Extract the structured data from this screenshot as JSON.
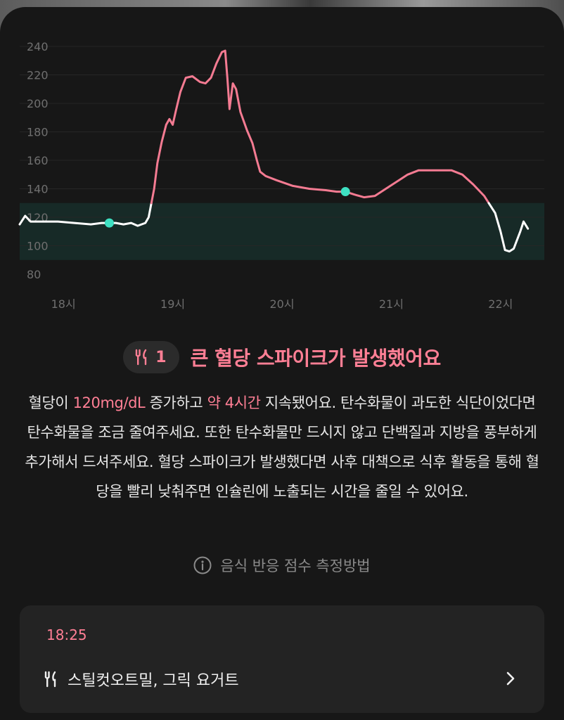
{
  "chart_data": {
    "type": "line",
    "title": "",
    "xlabel": "",
    "ylabel": "",
    "ylim": [
      80,
      240
    ],
    "yticks": [
      240,
      220,
      200,
      180,
      160,
      140,
      120,
      100,
      80
    ],
    "xticks": [
      {
        "label": "18시",
        "hour": 18.0
      },
      {
        "label": "19시",
        "hour": 19.0
      },
      {
        "label": "20시",
        "hour": 20.0
      },
      {
        "label": "21시",
        "hour": 21.0
      },
      {
        "label": "22시",
        "hour": 22.0
      }
    ],
    "xlim": [
      17.6,
      22.4
    ],
    "target_range": [
      90,
      130
    ],
    "grid": true,
    "colors": {
      "in_range_line": "#ffffff",
      "spike_line": "#f47b92",
      "target_band": "#172a27",
      "marker": "#3ee0c2"
    },
    "series": [
      {
        "points": [
          [
            17.6,
            115
          ],
          [
            17.65,
            121
          ],
          [
            17.7,
            117
          ],
          [
            17.8,
            117
          ],
          [
            17.95,
            117
          ],
          [
            18.1,
            116
          ],
          [
            18.25,
            115
          ],
          [
            18.35,
            116
          ],
          [
            18.42,
            116
          ],
          [
            18.48,
            116
          ],
          [
            18.55,
            115
          ],
          [
            18.62,
            116
          ],
          [
            18.68,
            114
          ],
          [
            18.75,
            116
          ],
          [
            18.78,
            120
          ],
          [
            18.8,
            128
          ],
          [
            18.83,
            140
          ],
          [
            18.86,
            158
          ],
          [
            18.9,
            173
          ],
          [
            18.94,
            185
          ],
          [
            18.97,
            189
          ],
          [
            19.0,
            185
          ],
          [
            19.03,
            195
          ],
          [
            19.07,
            208
          ],
          [
            19.12,
            218
          ],
          [
            19.18,
            219
          ],
          [
            19.25,
            215
          ],
          [
            19.3,
            214
          ],
          [
            19.35,
            218
          ],
          [
            19.4,
            228
          ],
          [
            19.45,
            236
          ],
          [
            19.48,
            237
          ],
          [
            19.5,
            218
          ],
          [
            19.52,
            196
          ],
          [
            19.55,
            214
          ],
          [
            19.58,
            210
          ],
          [
            19.62,
            194
          ],
          [
            19.68,
            181
          ],
          [
            19.73,
            172
          ],
          [
            19.77,
            160
          ],
          [
            19.8,
            152
          ],
          [
            19.85,
            149
          ],
          [
            19.95,
            146
          ],
          [
            20.1,
            142
          ],
          [
            20.25,
            140
          ],
          [
            20.4,
            139
          ],
          [
            20.5,
            138
          ],
          [
            20.58,
            138
          ],
          [
            20.66,
            136
          ],
          [
            20.75,
            134
          ],
          [
            20.85,
            135
          ],
          [
            20.95,
            140
          ],
          [
            21.05,
            145
          ],
          [
            21.15,
            150
          ],
          [
            21.25,
            153
          ],
          [
            21.4,
            153
          ],
          [
            21.55,
            153
          ],
          [
            21.65,
            150
          ],
          [
            21.75,
            143
          ],
          [
            21.85,
            135
          ],
          [
            21.95,
            123
          ],
          [
            22.0,
            110
          ],
          [
            22.04,
            97
          ],
          [
            22.08,
            96
          ],
          [
            22.12,
            98
          ],
          [
            22.18,
            110
          ],
          [
            22.21,
            117
          ],
          [
            22.25,
            112
          ]
        ]
      }
    ],
    "meal_markers": [
      {
        "hour": 18.42,
        "value": 116
      },
      {
        "hour": 20.58,
        "value": 138
      }
    ]
  },
  "insight": {
    "badge_number": "1",
    "headline": "큰 혈당 스파이크가 발생했어요",
    "desc_part1": "혈당이 ",
    "desc_hl1": "120mg/dL",
    "desc_part2": " 증가하고 ",
    "desc_hl2": "약 4시간",
    "desc_part3": " 지속됐어요. 탄수화물이 과도한 식단이었다면 탄수화물을 조금 줄여주세요. 또한 탄수화물만 드시지 않고 단백질과 지방을 풍부하게 추가해서 드셔주세요. 혈당 스파이크가 발생했다면 사후 대책으로 식후 활동을 통해 혈당을 빨리 낮춰주면 인슐린에 노출되는 시간을 줄일 수 있어요.",
    "method_link": "음식 반응 점수 측정방법"
  },
  "meal_card": {
    "time": "18:25",
    "foods": "스틸컷오트밀, 그릭 요거트",
    "icon": "fork-knife-icon",
    "chevron": "chevron-right-icon"
  }
}
